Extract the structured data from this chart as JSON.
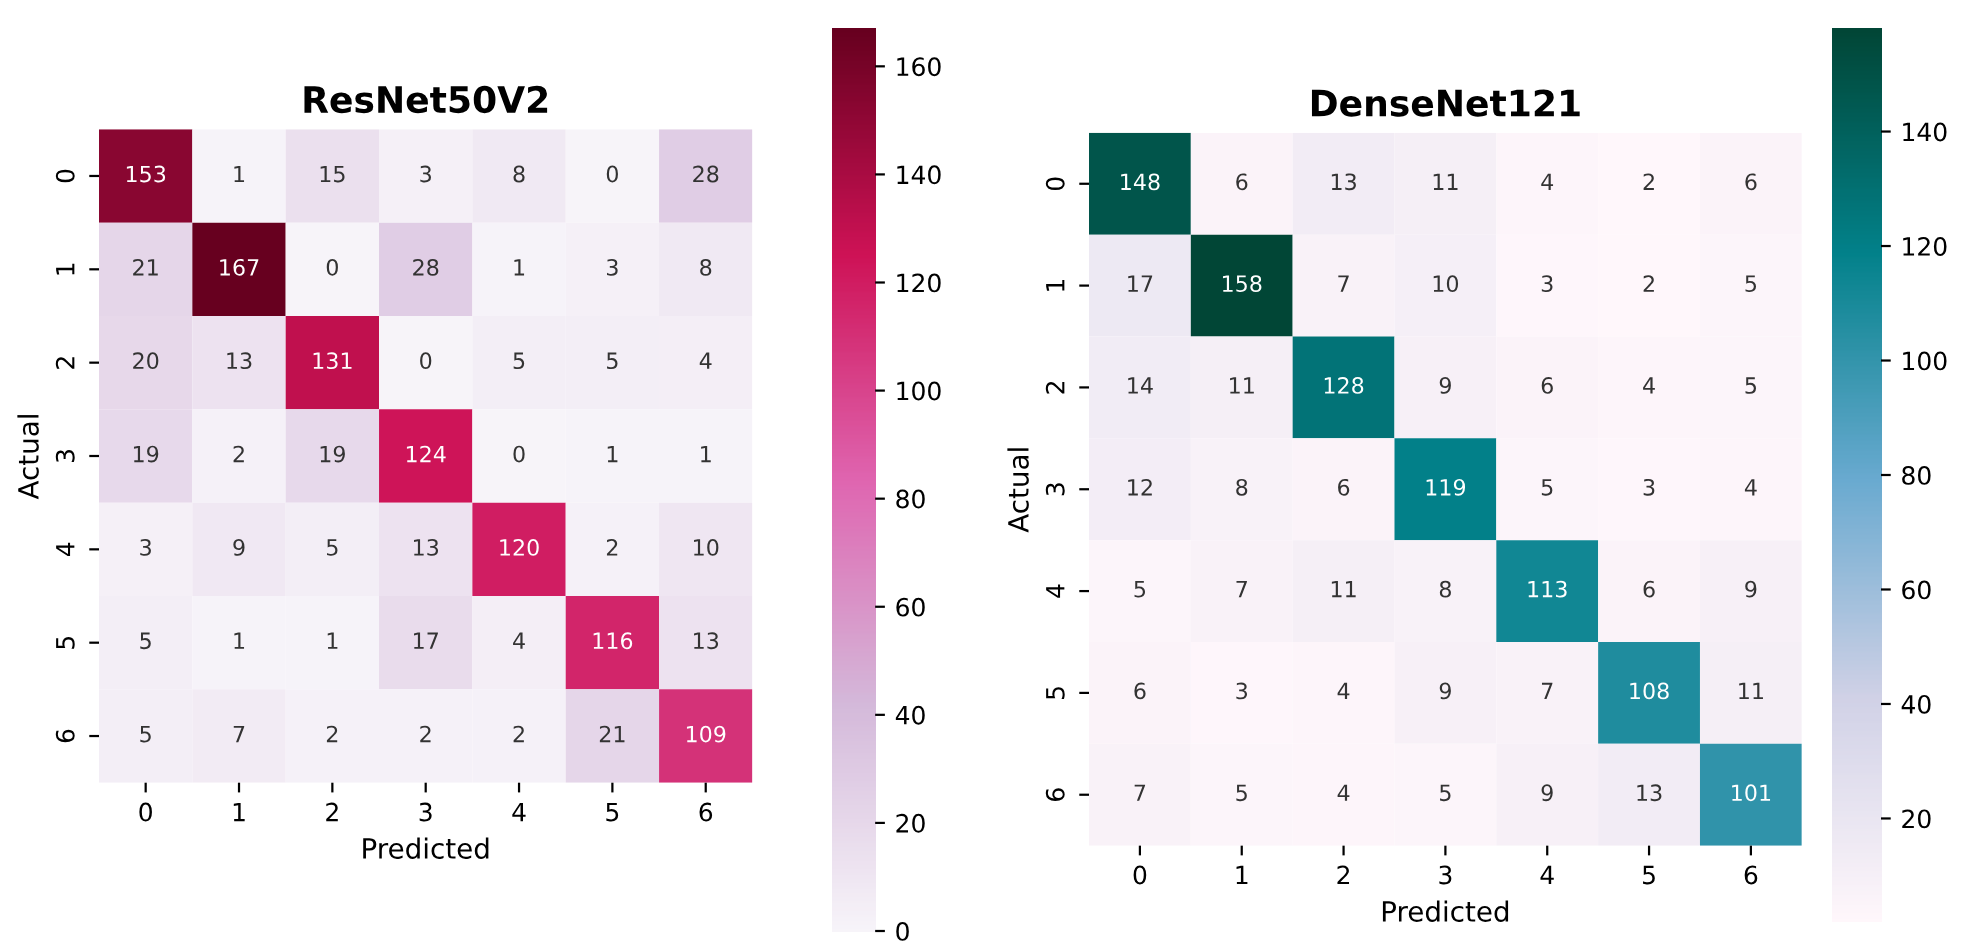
{
  "chart_data": [
    {
      "type": "heatmap",
      "title": "ResNet50V2",
      "xlabel": "Predicted",
      "ylabel": "Actual",
      "categories": [
        "0",
        "1",
        "2",
        "3",
        "4",
        "5",
        "6"
      ],
      "y_categories": [
        "0",
        "1",
        "2",
        "3",
        "4",
        "5",
        "6"
      ],
      "colors": [
        "#f7f4f9",
        "#d4b9da",
        "#df65b0",
        "#ce1256",
        "#67001f"
      ],
      "clim": [
        0,
        167
      ],
      "cticks": [
        0,
        20,
        40,
        60,
        80,
        100,
        120,
        140,
        160
      ],
      "data_labels": true,
      "cells": [
        [
          153,
          1,
          15,
          3,
          8,
          0,
          28
        ],
        [
          21,
          167,
          0,
          28,
          1,
          3,
          8
        ],
        [
          20,
          13,
          131,
          0,
          5,
          5,
          4
        ],
        [
          19,
          2,
          19,
          124,
          0,
          1,
          1
        ],
        [
          3,
          9,
          5,
          13,
          120,
          2,
          10
        ],
        [
          5,
          1,
          1,
          17,
          4,
          116,
          13
        ],
        [
          5,
          7,
          2,
          2,
          2,
          21,
          109
        ]
      ]
    },
    {
      "type": "heatmap",
      "title": "DenseNet121",
      "xlabel": "Predicted",
      "ylabel": "Actual",
      "categories": [
        "0",
        "1",
        "2",
        "3",
        "4",
        "5",
        "6"
      ],
      "y_categories": [
        "0",
        "1",
        "2",
        "3",
        "4",
        "5",
        "6"
      ],
      "colors": [
        "#fff7fb",
        "#d0d1e6",
        "#67a9cf",
        "#02818a",
        "#014636"
      ],
      "clim": [
        2,
        158
      ],
      "cticks": [
        20,
        40,
        60,
        80,
        100,
        120,
        140
      ],
      "data_labels": true,
      "cells": [
        [
          148,
          6,
          13,
          11,
          4,
          2,
          6
        ],
        [
          17,
          158,
          7,
          10,
          3,
          2,
          5
        ],
        [
          14,
          11,
          128,
          9,
          6,
          4,
          5
        ],
        [
          12,
          8,
          6,
          119,
          5,
          3,
          4
        ],
        [
          5,
          7,
          11,
          8,
          113,
          6,
          9
        ],
        [
          6,
          3,
          4,
          9,
          7,
          108,
          11
        ],
        [
          7,
          5,
          4,
          5,
          9,
          13,
          101
        ]
      ]
    }
  ]
}
